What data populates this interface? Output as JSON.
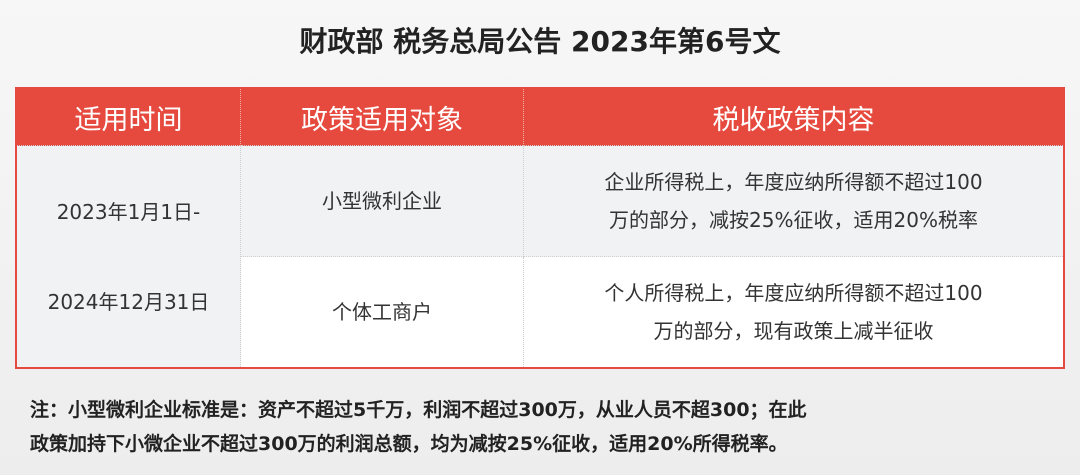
{
  "title": "财政部 税务总局公告 2023年第6号文",
  "table": {
    "headers": [
      "适用时间",
      "政策适用对象",
      "税收政策内容"
    ],
    "time_line1": "2023年1月1日-",
    "time_line2": "2024年12月31日",
    "rows": [
      {
        "object": "小型微利企业",
        "content_line1": "企业所得税上，年度应纳所得额不超过100",
        "content_line2": "万的部分，减按25%征收，适用20%税率"
      },
      {
        "object": "个体工商户",
        "content_line1": "个人所得税上，年度应纳所得额不超过100",
        "content_line2": "万的部分，现有政策上减半征收"
      }
    ]
  },
  "note": {
    "line1": "注：小型微利企业标准是：资产不超过5千万，利润不超过300万，从业人员不超300；在此",
    "line2": "政策加持下小微企业不超过300万的利润总额，均为减按25%征收，适用20%所得税率。"
  },
  "colors": {
    "header": "#e64a3e"
  }
}
